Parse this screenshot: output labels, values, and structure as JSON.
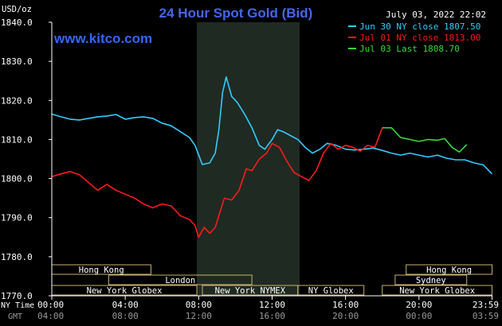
{
  "chart_data": {
    "type": "line",
    "title": "24 Hour Spot Gold (Bid)",
    "ylabel": "USD/oz",
    "ylim": [
      1770,
      1840
    ],
    "xlim": [
      0,
      24
    ],
    "y_ticks": [
      "1840.0",
      "1830.0",
      "1820.0",
      "1810.0",
      "1800.0",
      "1790.0",
      "1780.0",
      "1770.0"
    ],
    "ny_time_label": "NY Time",
    "gmt_label": "GMT",
    "ny_time_ticks": [
      "00:00",
      "04:00",
      "08:00",
      "12:00",
      "16:00",
      "20:00",
      "23:59"
    ],
    "gmt_ticks": [
      "04:00",
      "08:00",
      "12:00",
      "16:00",
      "20:00",
      "00:00",
      "03:59"
    ],
    "shaded_range": [
      7.9,
      13.5
    ],
    "grid": false,
    "legend_position": "top-right",
    "series": [
      {
        "name": "Jun 30 NY close 1807.50",
        "color": "#33ccff",
        "x": [
          0,
          0.5,
          1,
          1.5,
          2,
          2.5,
          3,
          3.5,
          4,
          4.5,
          5,
          5.5,
          6,
          6.5,
          7,
          7.5,
          7.8,
          8.2,
          8.6,
          8.9,
          9.1,
          9.3,
          9.5,
          9.8,
          10.1,
          10.5,
          10.9,
          11.3,
          11.6,
          12.0,
          12.3,
          12.6,
          13.0,
          13.4,
          13.8,
          14.2,
          14.6,
          15.0,
          15.5,
          16.0,
          16.5,
          17.0,
          17.5,
          18.0,
          18.5,
          19.0,
          19.5,
          20.0,
          20.5,
          21.0,
          21.5,
          22.0,
          22.5,
          23.0,
          23.5,
          23.98
        ],
        "values": [
          1816.5,
          1815.8,
          1815.2,
          1815.0,
          1815.4,
          1815.8,
          1816.0,
          1816.4,
          1815.2,
          1815.6,
          1815.8,
          1815.4,
          1814.2,
          1813.5,
          1812.0,
          1810.5,
          1808.5,
          1803.6,
          1804.0,
          1806.5,
          1812.5,
          1822.0,
          1826.0,
          1821.0,
          1819.5,
          1816.5,
          1813.0,
          1808.5,
          1807.5,
          1810.0,
          1812.5,
          1812.0,
          1811.0,
          1810.0,
          1808.0,
          1806.5,
          1807.5,
          1809.0,
          1808.5,
          1807.5,
          1807.3,
          1807.5,
          1807.8,
          1807.2,
          1806.5,
          1806.0,
          1806.5,
          1806.0,
          1805.5,
          1806.0,
          1805.2,
          1804.8,
          1804.8,
          1804.0,
          1803.5,
          1801.2
        ]
      },
      {
        "name": "Jul 01 NY close 1813.00",
        "color": "#ff1a1a",
        "x": [
          0,
          0.5,
          1,
          1.5,
          2,
          2.5,
          3,
          3.5,
          4,
          4.5,
          5,
          5.5,
          6,
          6.5,
          7,
          7.5,
          7.8,
          8.0,
          8.3,
          8.6,
          8.9,
          9.1,
          9.4,
          9.8,
          10.2,
          10.6,
          10.9,
          11.3,
          11.7,
          12.0,
          12.4,
          12.8,
          13.2,
          13.6,
          14.0,
          14.4,
          14.8,
          15.2,
          15.6,
          16.0,
          16.4,
          16.8,
          17.2,
          17.6,
          18.0
        ],
        "values": [
          1800.5,
          1801.2,
          1801.8,
          1801.0,
          1799.0,
          1797.0,
          1798.5,
          1797.0,
          1796.0,
          1795.0,
          1793.5,
          1792.5,
          1793.5,
          1793.0,
          1790.5,
          1789.5,
          1788.0,
          1785.0,
          1787.5,
          1786.0,
          1787.5,
          1790.5,
          1795.0,
          1794.5,
          1797.0,
          1802.5,
          1802.0,
          1805.0,
          1806.5,
          1809.0,
          1808.0,
          1804.5,
          1801.5,
          1800.5,
          1799.5,
          1802.0,
          1806.5,
          1809.0,
          1807.5,
          1808.5,
          1808.0,
          1807.0,
          1808.5,
          1808.0,
          1813.0
        ]
      },
      {
        "name": "Jul 03 Last 1808.70",
        "color": "#33dd33",
        "x": [
          18.0,
          18.5,
          19.0,
          19.5,
          20.0,
          20.5,
          21.0,
          21.4,
          21.8,
          22.2,
          22.6
        ],
        "values": [
          1813.0,
          1813.0,
          1810.5,
          1810.0,
          1809.5,
          1810.0,
          1809.8,
          1810.2,
          1808.0,
          1806.8,
          1808.7
        ]
      }
    ],
    "sessions": [
      {
        "name": "Hong Kong",
        "start": 0.0,
        "end": 5.4,
        "row": 0
      },
      {
        "name": "London",
        "start": 3.1,
        "end": 10.9,
        "row": 1
      },
      {
        "name": "New York Globex",
        "start": 0.0,
        "end": 7.9,
        "row": 2
      },
      {
        "name": "New York NYMEX",
        "start": 8.2,
        "end": 13.4,
        "row": 2
      },
      {
        "name": "NY Globex",
        "start": 13.4,
        "end": 17.0,
        "row": 2
      },
      {
        "name": "Hong Kong",
        "start": 19.3,
        "end": 23.98,
        "row": 0
      },
      {
        "name": "Sydney",
        "start": 18.7,
        "end": 22.6,
        "row": 1
      },
      {
        "name": "New York Globex",
        "start": 18.0,
        "end": 23.98,
        "row": 2
      }
    ]
  },
  "header": {
    "date": "July 03, 2022 22:02",
    "site": "www.kitco.com"
  },
  "colors": {
    "background": "#000000",
    "axis": "#ffffff",
    "title": "#4466ee",
    "site": "#3366ff",
    "shade": "#1f2a22",
    "session_border": "#c8b070"
  }
}
